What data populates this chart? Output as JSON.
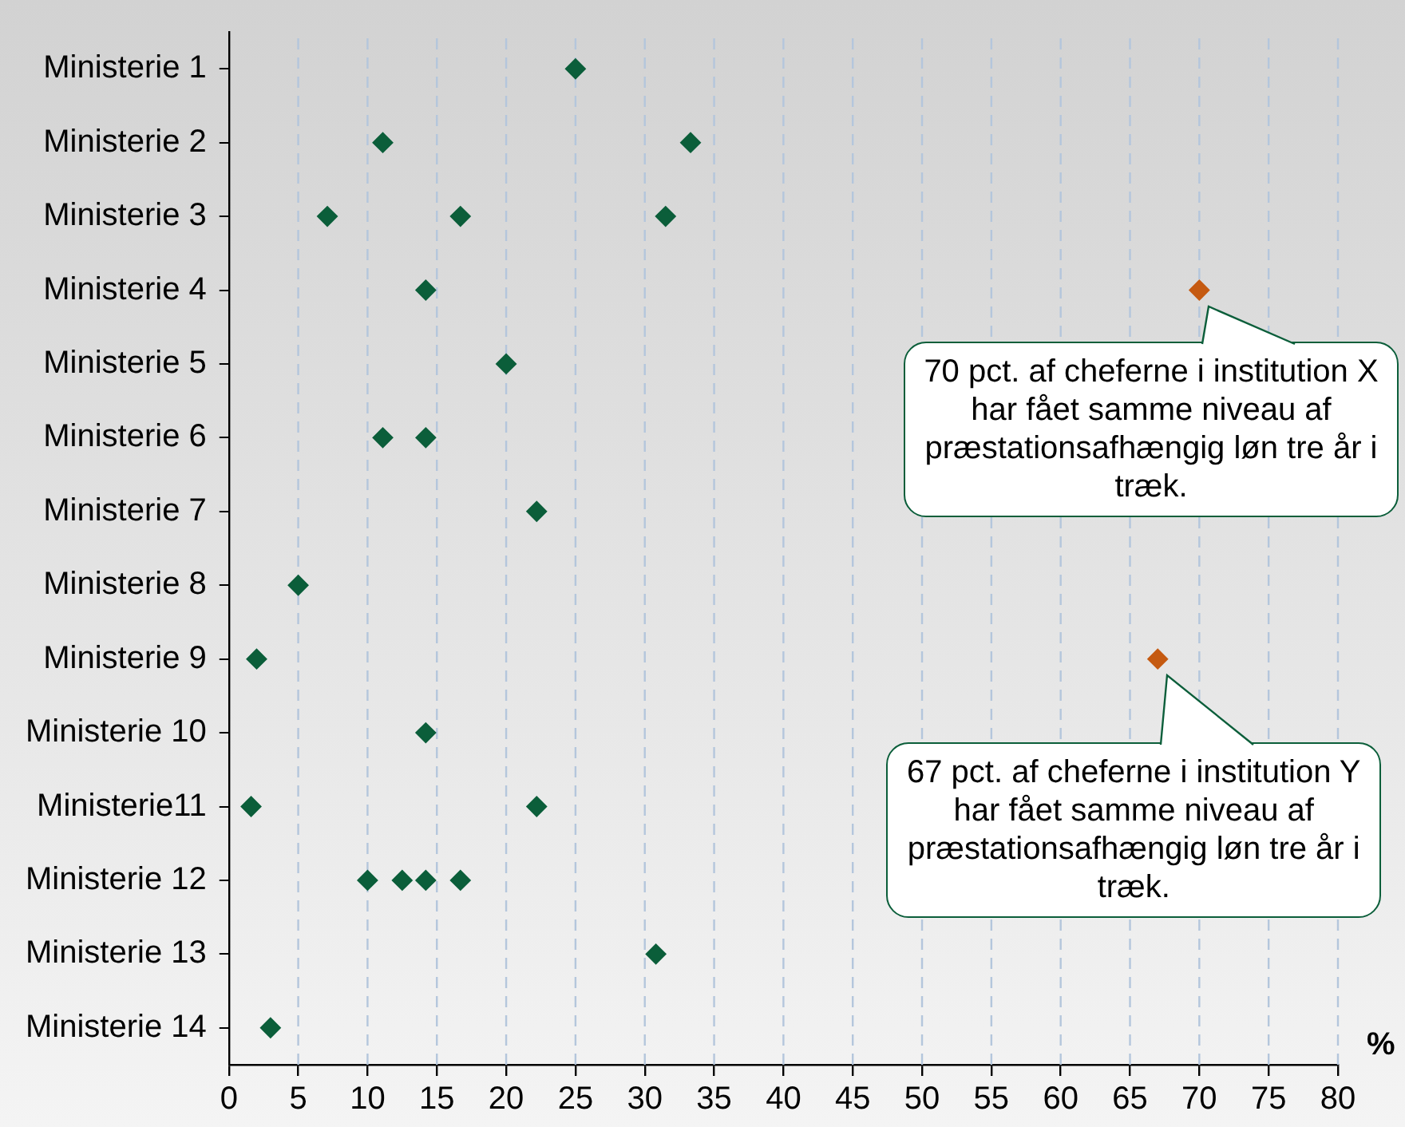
{
  "chart_data": {
    "type": "scatter",
    "orientation": "horizontal",
    "categories": [
      "Ministerie 1",
      "Ministerie 2",
      "Ministerie 3",
      "Ministerie 4",
      "Ministerie 5",
      "Ministerie 6",
      "Ministerie 7",
      "Ministerie 8",
      "Ministerie 9",
      "Ministerie 10",
      "Ministerie11",
      "Ministerie 12",
      "Ministerie 13",
      "Ministerie 14"
    ],
    "series": [
      {
        "color": "#0b5e3a",
        "values": [
          25,
          11.1,
          7.1,
          14.2,
          20,
          11.1,
          22.2,
          5,
          2,
          14.2,
          1.6,
          10,
          30.8,
          3
        ]
      },
      {
        "color": "#0b5e3a",
        "values": [
          null,
          33.3,
          16.7,
          null,
          null,
          14.2,
          null,
          null,
          null,
          null,
          22.2,
          12.5,
          null,
          null
        ]
      },
      {
        "color": "#0b5e3a",
        "values": [
          null,
          null,
          31.5,
          null,
          null,
          null,
          null,
          null,
          null,
          null,
          null,
          14.2,
          null,
          null
        ]
      },
      {
        "color": "#0b5e3a",
        "values": [
          null,
          null,
          null,
          null,
          null,
          null,
          null,
          null,
          null,
          null,
          null,
          16.7,
          null,
          null
        ]
      },
      {
        "color": "#c55a11",
        "values": [
          null,
          null,
          null,
          70,
          null,
          null,
          null,
          null,
          67,
          null,
          null,
          null,
          null,
          null
        ]
      }
    ],
    "xlabel": "%",
    "xlim": [
      0,
      80
    ],
    "xticks": [
      0,
      5,
      10,
      15,
      20,
      25,
      30,
      35,
      40,
      45,
      50,
      55,
      60,
      65,
      70,
      75,
      80
    ],
    "grid": "x",
    "marker": "diamond",
    "annotations": [
      {
        "text": "70 pct. af cheferne i institution X har fået samme niveau af præstationsafhængig løn tre år i træk.",
        "x": 70,
        "y": "Ministerie 4"
      },
      {
        "text": "67 pct. af cheferne i institution Y har fået samme niveau af præstationsafhængig løn tre år i træk.",
        "x": 67,
        "y": "Ministerie 9"
      }
    ]
  }
}
